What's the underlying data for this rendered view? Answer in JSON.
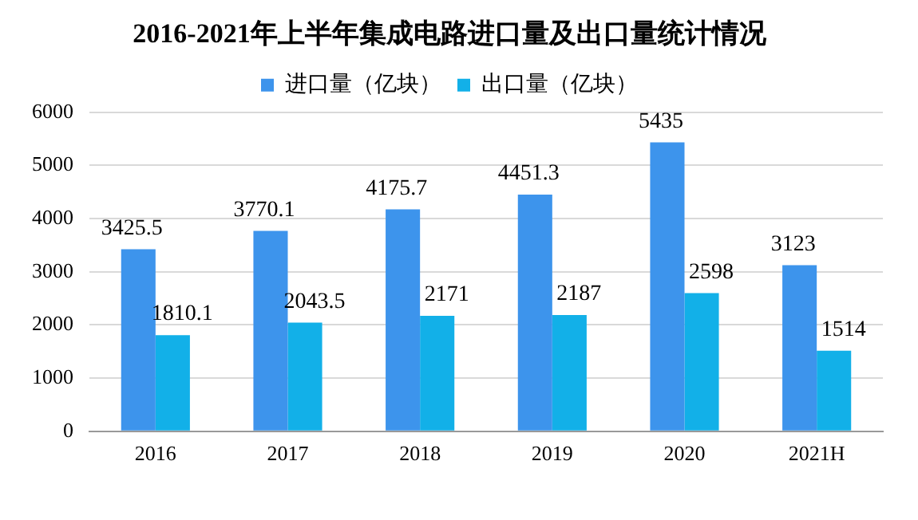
{
  "chart_data": {
    "type": "bar",
    "title": "2016-2021年上半年集成电路进口量及出口量统计情况",
    "categories": [
      "2016",
      "2017",
      "2018",
      "2019",
      "2020",
      "2021H"
    ],
    "series": [
      {
        "name": "进口量（亿块）",
        "color": "#3d94ec",
        "values": [
          3425.5,
          3770.1,
          4175.7,
          4451.3,
          5435,
          3123
        ]
      },
      {
        "name": "出口量（亿块）",
        "color": "#12b0e8",
        "values": [
          1810.1,
          2043.5,
          2171,
          2187,
          2598,
          1514
        ]
      }
    ],
    "ylim": [
      0,
      6000
    ],
    "yticks": [
      0,
      1000,
      2000,
      3000,
      4000,
      5000,
      6000
    ],
    "grid": "y",
    "legend": "top",
    "data_labels": true
  }
}
